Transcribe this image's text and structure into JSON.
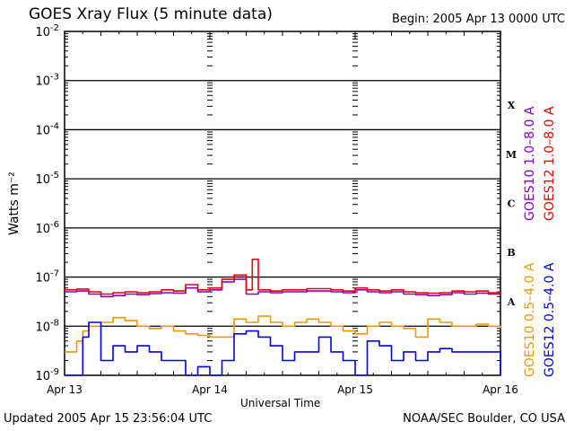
{
  "title": "GOES Xray Flux (5 minute data)",
  "begin": "Begin:  2005 Apr 13 0000 UTC",
  "updated": "Updated 2005 Apr 15 23:56:04 UTC",
  "credit": "NOAA/SEC Boulder, CO USA",
  "colors": {
    "goes10_long": "#8800cc",
    "goes12_long": "#ee0000",
    "goes10_short": "#ee9900",
    "goes12_short": "#0000ee"
  },
  "chart_data": {
    "type": "line",
    "title": "GOES Xray Flux (5 minute data)",
    "xlabel": "Universal Time",
    "ylabel": "Watts m⁻²",
    "y_scale": "log",
    "ylim": [
      1e-09,
      0.01
    ],
    "xlim": [
      "Apr 13",
      "Apr 16"
    ],
    "x_ticks": [
      "Apr 13",
      "Apr 14",
      "Apr 15",
      "Apr 16"
    ],
    "y_ticks": [
      {
        "base": "10",
        "exp": "-9",
        "value": 1e-09
      },
      {
        "base": "10",
        "exp": "-8",
        "value": 1e-08
      },
      {
        "base": "10",
        "exp": "-7",
        "value": 1e-07
      },
      {
        "base": "10",
        "exp": "-6",
        "value": 1e-06
      },
      {
        "base": "10",
        "exp": "-5",
        "value": 1e-05
      },
      {
        "base": "10",
        "exp": "-4",
        "value": 0.0001
      },
      {
        "base": "10",
        "exp": "-3",
        "value": 0.001
      },
      {
        "base": "10",
        "exp": "-2",
        "value": 0.01
      }
    ],
    "flare_classes": [
      {
        "label": "A",
        "value": 1e-08
      },
      {
        "label": "B",
        "value": 1e-07
      },
      {
        "label": "C",
        "value": 1e-06
      },
      {
        "label": "M",
        "value": 1e-05
      },
      {
        "label": "X",
        "value": 0.0001
      }
    ],
    "grid": "horizontal lines at each decade",
    "legend_placement": "right, vertical text",
    "x_unit": "hours since 2005 Apr 13 0000 UTC",
    "series": [
      {
        "name": "GOES10 1.0–8.0 A",
        "color": "#8800cc",
        "x": [
          0,
          2,
          4,
          6,
          8,
          10,
          12,
          14,
          16,
          18,
          20,
          22,
          24,
          26,
          28,
          30,
          32,
          34,
          36,
          38,
          40,
          42,
          44,
          46,
          48,
          50,
          52,
          54,
          56,
          58,
          60,
          62,
          64,
          66,
          68,
          70,
          72
        ],
        "y": [
          5e-08,
          5.2e-08,
          4.5e-08,
          4e-08,
          4.2e-08,
          4.5e-08,
          4.4e-08,
          4.6e-08,
          4.8e-08,
          4.7e-08,
          6e-08,
          5e-08,
          5.5e-08,
          8e-08,
          9e-08,
          4.5e-08,
          5e-08,
          4.8e-08,
          5e-08,
          5e-08,
          5.2e-08,
          5.2e-08,
          5e-08,
          4.8e-08,
          5.5e-08,
          5e-08,
          4.8e-08,
          5e-08,
          4.5e-08,
          4.4e-08,
          4.2e-08,
          4.4e-08,
          4.8e-08,
          4.5e-08,
          4.7e-08,
          4.5e-08,
          4.6e-08
        ]
      },
      {
        "name": "GOES12 1.0–8.0 A",
        "color": "#ee0000",
        "x": [
          0,
          2,
          4,
          6,
          8,
          10,
          12,
          14,
          16,
          18,
          20,
          22,
          24,
          26,
          28,
          30,
          31,
          32,
          34,
          36,
          38,
          40,
          42,
          44,
          46,
          48,
          50,
          52,
          54,
          56,
          58,
          60,
          62,
          64,
          66,
          68,
          70,
          72
        ],
        "y": [
          5.5e-08,
          5.7e-08,
          5e-08,
          4.5e-08,
          4.8e-08,
          5e-08,
          4.8e-08,
          5e-08,
          5.5e-08,
          5.2e-08,
          7e-08,
          5.5e-08,
          6e-08,
          9e-08,
          1.1e-07,
          5.5e-08,
          2.3e-07,
          5.5e-08,
          5.2e-08,
          5.5e-08,
          5.5e-08,
          5.8e-08,
          5.8e-08,
          5.5e-08,
          5.2e-08,
          6e-08,
          5.5e-08,
          5.2e-08,
          5.5e-08,
          5e-08,
          4.8e-08,
          4.7e-08,
          4.8e-08,
          5.2e-08,
          5e-08,
          5.2e-08,
          4.8e-08,
          5e-08
        ]
      },
      {
        "name": "GOES10 0.5–4.0 A",
        "color": "#ee9900",
        "x": [
          0,
          1,
          2,
          3,
          4,
          6,
          8,
          10,
          12,
          14,
          16,
          18,
          20,
          22,
          24,
          26,
          28,
          30,
          32,
          34,
          36,
          38,
          40,
          42,
          44,
          46,
          48,
          50,
          52,
          54,
          56,
          58,
          60,
          62,
          64,
          66,
          68,
          70,
          72
        ],
        "y": [
          3e-09,
          3e-09,
          5e-09,
          8e-09,
          1e-08,
          1.2e-08,
          1.5e-08,
          1.3e-08,
          1e-08,
          9e-09,
          1e-08,
          8e-09,
          7e-09,
          6.5e-09,
          6e-09,
          6e-09,
          1.4e-08,
          1.2e-08,
          1.6e-08,
          1.2e-08,
          1e-08,
          1.2e-08,
          1.4e-08,
          1.2e-08,
          1e-08,
          8e-09,
          7e-09,
          1e-08,
          1.2e-08,
          1e-08,
          9e-09,
          6e-09,
          1.4e-08,
          1.2e-08,
          1e-08,
          1e-08,
          1.1e-08,
          1e-08,
          9e-09
        ]
      },
      {
        "name": "GOES12 0.5–4.0 A",
        "color": "#0000ee",
        "x": [
          0,
          1,
          2,
          3,
          4,
          6,
          8,
          10,
          12,
          14,
          16,
          18,
          20,
          22,
          24,
          26,
          28,
          30,
          32,
          34,
          36,
          38,
          40,
          42,
          44,
          46,
          48,
          50,
          52,
          54,
          56,
          58,
          60,
          62,
          64,
          66,
          68,
          70,
          72
        ],
        "y": [
          1e-09,
          1e-09,
          1e-09,
          6e-09,
          1.2e-08,
          2e-09,
          4e-09,
          3e-09,
          4e-09,
          3e-09,
          2e-09,
          2e-09,
          1e-09,
          1.5e-09,
          1e-09,
          2e-09,
          7e-09,
          8e-09,
          6e-09,
          4e-09,
          2e-09,
          3e-09,
          3e-09,
          6e-09,
          3e-09,
          2e-09,
          1e-09,
          5e-09,
          4e-09,
          2e-09,
          3e-09,
          2e-09,
          3e-09,
          3.5e-09,
          3e-09,
          3e-09,
          3e-09,
          3e-09,
          1e-09
        ]
      }
    ]
  }
}
